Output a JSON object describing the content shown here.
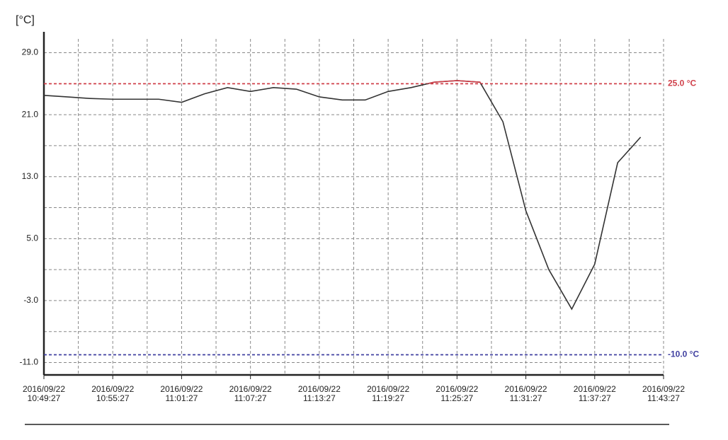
{
  "chart_data": {
    "type": "line",
    "y_label": "[°C]",
    "x": [
      "2016/09/22 10:49:27",
      "2016/09/22 10:51:27",
      "2016/09/22 10:53:27",
      "2016/09/22 10:55:27",
      "2016/09/22 10:57:27",
      "2016/09/22 10:59:27",
      "2016/09/22 11:01:27",
      "2016/09/22 11:03:27",
      "2016/09/22 11:05:27",
      "2016/09/22 11:07:27",
      "2016/09/22 11:09:27",
      "2016/09/22 11:11:27",
      "2016/09/22 11:13:27",
      "2016/09/22 11:15:27",
      "2016/09/22 11:17:27",
      "2016/09/22 11:19:27",
      "2016/09/22 11:21:27",
      "2016/09/22 11:23:27",
      "2016/09/22 11:25:27",
      "2016/09/22 11:27:27",
      "2016/09/22 11:29:27",
      "2016/09/22 11:31:27",
      "2016/09/22 11:33:27",
      "2016/09/22 11:35:27",
      "2016/09/22 11:37:27",
      "2016/09/22 11:39:27",
      "2016/09/22 11:41:27"
    ],
    "values": [
      23.5,
      23.3,
      23.1,
      23.0,
      23.0,
      23.0,
      22.6,
      23.7,
      24.5,
      24.0,
      24.5,
      24.3,
      23.3,
      22.9,
      22.9,
      24.0,
      24.5,
      25.2,
      25.4,
      25.2,
      20.1,
      8.6,
      1.0,
      -4.1,
      1.7,
      14.8,
      18.1
    ],
    "color": "#333333",
    "xlim": [
      "2016/09/22 10:49:27",
      "2016/09/22 11:43:27"
    ],
    "xticks": [
      "2016/09/22 10:49:27",
      "2016/09/22 10:55:27",
      "2016/09/22 11:01:27",
      "2016/09/22 11:07:27",
      "2016/09/22 11:13:27",
      "2016/09/22 11:19:27",
      "2016/09/22 11:25:27",
      "2016/09/22 11:31:27",
      "2016/09/22 11:37:27",
      "2016/09/22 11:43:27"
    ],
    "x_minor_ticks": [
      "2016/09/22 10:52:27",
      "2016/09/22 10:58:27",
      "2016/09/22 11:04:27",
      "2016/09/22 11:10:27",
      "2016/09/22 11:16:27",
      "2016/09/22 11:22:27",
      "2016/09/22 11:28:27",
      "2016/09/22 11:34:27",
      "2016/09/22 11:40:27"
    ],
    "ylim": [
      -12.6,
      31.7
    ],
    "yticks": [
      {
        "value": 29,
        "label": "29.0"
      },
      {
        "value": 21,
        "label": "21.0"
      },
      {
        "value": 13,
        "label": "13.0"
      },
      {
        "value": 5,
        "label": "5.0"
      },
      {
        "value": -3,
        "label": "-3.0"
      },
      {
        "value": -11,
        "label": "-11.0"
      }
    ],
    "y_minor_ticks": [
      25,
      17,
      9,
      1,
      -7
    ],
    "grid": true,
    "thresholds": [
      {
        "value": 25,
        "label": "25.0 °C",
        "color": "#d0404a"
      },
      {
        "value": -10,
        "label": "-10.0 °C",
        "color": "#4040a0"
      }
    ]
  }
}
